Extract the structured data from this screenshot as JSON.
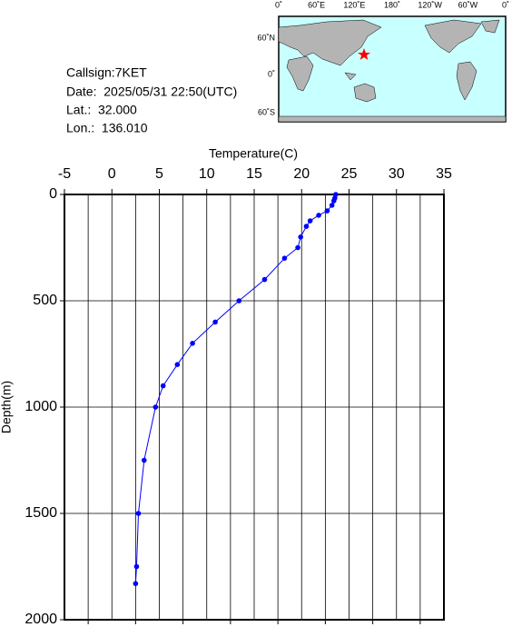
{
  "info": {
    "callsign": "Callsign:7KET",
    "date": "Date:  2025/05/31 22:50(UTC)",
    "lat": "Lat.:  32.000",
    "lon": "Lon.:  136.010"
  },
  "map": {
    "top_labels": [
      "0˚",
      "60˚E",
      "120˚E",
      "180˚",
      "120˚W",
      "60˚W",
      "0˚"
    ],
    "left_labels": [
      "60˚N",
      "0˚",
      "60˚S"
    ]
  },
  "chart_data": {
    "type": "line",
    "x_label": "Temperature(C)",
    "y_label": "Depth(m)",
    "x": [
      23.6,
      23.5,
      23.4,
      23.2,
      22.7,
      21.8,
      20.9,
      20.5,
      19.9,
      19.6,
      18.2,
      16.1,
      13.4,
      10.9,
      8.5,
      6.9,
      5.4,
      4.6,
      3.4,
      2.8,
      2.6,
      2.5
    ],
    "values": [
      0,
      17,
      30,
      51,
      77,
      98,
      124,
      150,
      200,
      250,
      300,
      400,
      500,
      600,
      700,
      800,
      900,
      1000,
      1250,
      1500,
      1750,
      1830
    ],
    "color": "#0000ff",
    "xlim": [
      -5,
      35
    ],
    "xticks": [
      -5,
      0,
      5,
      10,
      15,
      20,
      25,
      30,
      35
    ],
    "xminor_ticks": [
      -2.5,
      2.5,
      7.5,
      12.5,
      17.5,
      22.5,
      27.5,
      32.5
    ],
    "ylim": [
      0,
      2000
    ],
    "yticks": [
      0,
      500,
      1000,
      1500,
      2000
    ],
    "y_inverted": true,
    "grid": true
  }
}
